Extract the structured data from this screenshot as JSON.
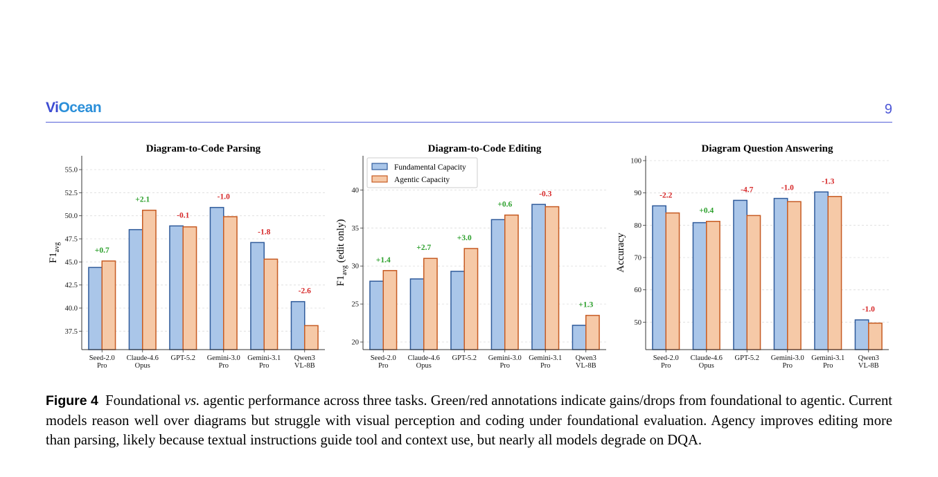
{
  "header": {
    "logo_part1": "Vi",
    "logo_part2": "Ocean",
    "page_number": "9"
  },
  "legend": {
    "fundamental": "Fundamental Capacity",
    "agentic": "Agentic Capacity"
  },
  "colors": {
    "fundamental_fill": "#aac6e9",
    "fundamental_edge": "#2f5b9b",
    "agentic_fill": "#f6c9a7",
    "agentic_edge": "#c65a22",
    "gain": "#2ca02c",
    "drop": "#d62728"
  },
  "chart_data": [
    {
      "type": "bar",
      "title": "Diagram-to-Code Parsing",
      "ylabel_main": "F1",
      "ylabel_sub": "avg",
      "ylabel_suffix": "",
      "categories": [
        [
          "Seed-2.0",
          "Pro"
        ],
        [
          "Claude-4.6",
          "Opus"
        ],
        [
          "GPT-5.2"
        ],
        [
          "Gemini-3.0",
          "Pro"
        ],
        [
          "Gemini-3.1",
          "Pro"
        ],
        [
          "Qwen3",
          "VL-8B"
        ]
      ],
      "series": [
        {
          "name": "Fundamental Capacity",
          "values": [
            44.4,
            48.5,
            48.9,
            50.9,
            47.1,
            40.7
          ]
        },
        {
          "name": "Agentic Capacity",
          "values": [
            45.1,
            50.6,
            48.8,
            49.9,
            45.3,
            38.1
          ]
        }
      ],
      "annotations": [
        "+0.7",
        "+2.1",
        "-0.1",
        "-1.0",
        "-1.8",
        "-2.6"
      ],
      "yticks": [
        "37.5",
        "40.0",
        "42.5",
        "45.0",
        "47.5",
        "50.0",
        "52.5",
        "55.0"
      ],
      "ylim": [
        35.5,
        56.5
      ],
      "legend": false
    },
    {
      "type": "bar",
      "title": "Diagram-to-Code Editing",
      "ylabel_main": "F1",
      "ylabel_sub": "avg",
      "ylabel_suffix": " (edit only)",
      "categories": [
        [
          "Seed-2.0",
          "Pro"
        ],
        [
          "Claude-4.6",
          "Opus"
        ],
        [
          "GPT-5.2"
        ],
        [
          "Gemini-3.0",
          "Pro"
        ],
        [
          "Gemini-3.1",
          "Pro"
        ],
        [
          "Qwen3",
          "VL-8B"
        ]
      ],
      "series": [
        {
          "name": "Fundamental Capacity",
          "values": [
            28.0,
            28.3,
            29.3,
            36.1,
            38.1,
            22.2
          ]
        },
        {
          "name": "Agentic Capacity",
          "values": [
            29.4,
            31.0,
            32.3,
            36.7,
            37.8,
            23.5
          ]
        }
      ],
      "annotations": [
        "+1.4",
        "+2.7",
        "+3.0",
        "+0.6",
        "-0.3",
        "+1.3"
      ],
      "yticks": [
        "20",
        "25",
        "30",
        "35",
        "40"
      ],
      "ylim": [
        19.0,
        44.5
      ],
      "legend": true
    },
    {
      "type": "bar",
      "title": "Diagram Question Answering",
      "ylabel_main": "Accuracy",
      "ylabel_sub": "",
      "ylabel_suffix": "",
      "categories": [
        [
          "Seed-2.0",
          "Pro"
        ],
        [
          "Claude-4.6",
          "Opus"
        ],
        [
          "GPT-5.2"
        ],
        [
          "Gemini-3.0",
          "Pro"
        ],
        [
          "Gemini-3.1",
          "Pro"
        ],
        [
          "Qwen3",
          "VL-8B"
        ]
      ],
      "series": [
        {
          "name": "Fundamental Capacity",
          "values": [
            86.0,
            80.8,
            87.7,
            88.3,
            90.3,
            50.7
          ]
        },
        {
          "name": "Agentic Capacity",
          "values": [
            83.8,
            81.2,
            83.0,
            87.3,
            88.9,
            49.7
          ]
        }
      ],
      "annotations": [
        "-2.2",
        "+0.4",
        "-4.7",
        "-1.0",
        "-1.3",
        "-1.0"
      ],
      "yticks": [
        "50",
        "60",
        "70",
        "80",
        "90",
        "100"
      ],
      "ylim": [
        41.5,
        101.5
      ],
      "legend": false
    }
  ],
  "caption": {
    "label": "Figure 4",
    "text_before": "Foundational ",
    "italic": "vs.",
    "text_after": " agentic performance across three tasks. Green/red annotations indicate gains/drops from foundational to agentic. Current models reason well over diagrams but struggle with visual perception and coding under foundational evaluation. Agency improves editing more than parsing, likely because textual instructions guide tool and context use, but nearly all models degrade on DQA."
  }
}
